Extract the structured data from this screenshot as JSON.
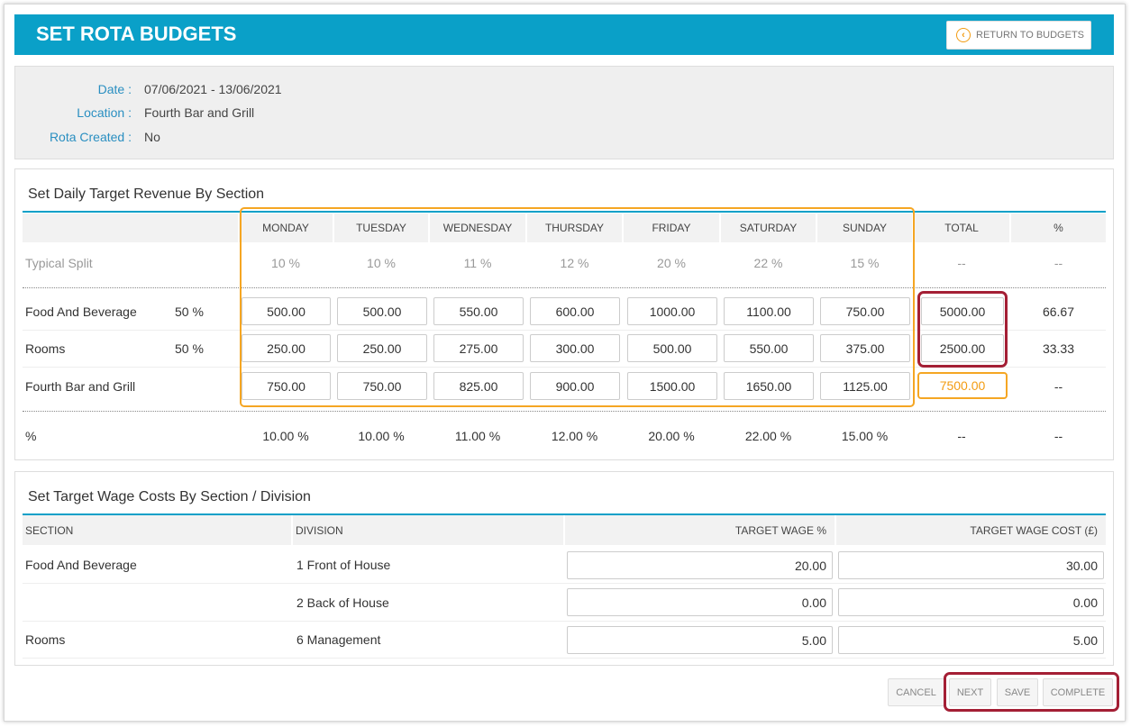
{
  "header": {
    "title": "SET ROTA BUDGETS",
    "return_label": "RETURN TO BUDGETS",
    "return_icon": "chevron-left-circle-icon"
  },
  "info": {
    "date_label": "Date :",
    "date_value": "07/06/2021 - 13/06/2021",
    "location_label": "Location :",
    "location_value": "Fourth Bar and Grill",
    "rota_label": "Rota Created :",
    "rota_value": "No"
  },
  "revenue": {
    "title": "Set Daily Target Revenue By Section",
    "columns": [
      "MONDAY",
      "TUESDAY",
      "WEDNESDAY",
      "THURSDAY",
      "FRIDAY",
      "SATURDAY",
      "SUNDAY",
      "TOTAL",
      "%"
    ],
    "typical_split": {
      "label": "Typical Split",
      "values": [
        "10 %",
        "10 %",
        "11 %",
        "12 %",
        "20 %",
        "22 %",
        "15 %",
        "--",
        "--"
      ]
    },
    "rows": [
      {
        "label": "Food And Beverage",
        "pct": "50 %",
        "days": [
          "500.00",
          "500.00",
          "550.00",
          "600.00",
          "1000.00",
          "1100.00",
          "750.00"
        ],
        "total": "5000.00",
        "percent": "66.67"
      },
      {
        "label": "Rooms",
        "pct": "50 %",
        "days": [
          "250.00",
          "250.00",
          "275.00",
          "300.00",
          "500.00",
          "550.00",
          "375.00"
        ],
        "total": "2500.00",
        "percent": "33.33"
      },
      {
        "label": "Fourth Bar and Grill",
        "pct": "",
        "days": [
          "750.00",
          "750.00",
          "825.00",
          "900.00",
          "1500.00",
          "1650.00",
          "1125.00"
        ],
        "total": "7500.00",
        "percent": "--"
      }
    ],
    "percent_row": {
      "label": "%",
      "values": [
        "10.00 %",
        "10.00 %",
        "11.00 %",
        "12.00 %",
        "20.00 %",
        "22.00 %",
        "15.00 %",
        "--",
        "--"
      ]
    }
  },
  "wage": {
    "title": "Set Target Wage Costs By Section / Division",
    "columns": [
      "SECTION",
      "DIVISION",
      "TARGET WAGE %",
      "TARGET WAGE COST (£)"
    ],
    "rows": [
      {
        "section": "Food And Beverage",
        "division": "1 Front of House",
        "wage_pct": "20.00",
        "wage_cost": "30.00"
      },
      {
        "section": "",
        "division": "2 Back of House",
        "wage_pct": "0.00",
        "wage_cost": "0.00"
      },
      {
        "section": "Rooms",
        "division": "6 Management",
        "wage_pct": "5.00",
        "wage_cost": "5.00"
      }
    ]
  },
  "actions": {
    "cancel": "CANCEL",
    "next": "NEXT",
    "save": "SAVE",
    "complete": "COMPLETE"
  },
  "colors": {
    "header_bg": "#0aa0c8",
    "label_blue": "#2a8fc1",
    "highlight_orange": "#f5a623",
    "highlight_red": "#a41f35",
    "total_orange_text": "#f39c12"
  }
}
